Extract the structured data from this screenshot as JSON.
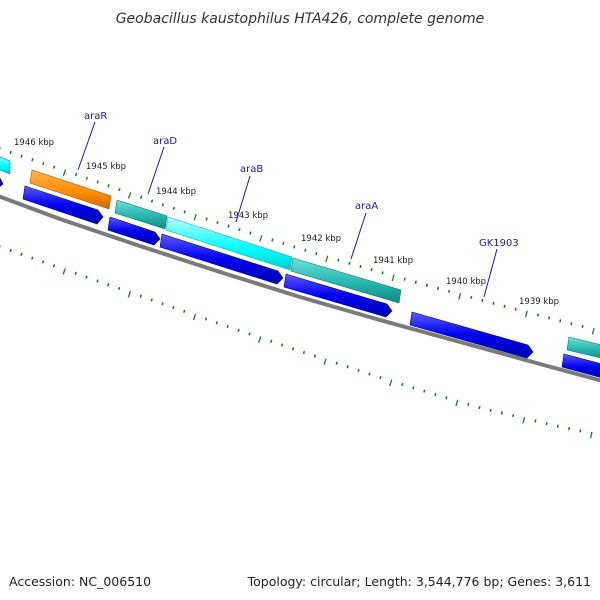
{
  "title": "Geobacillus kaustophilus HTA426, complete genome",
  "footer": {
    "accession": "Accession: NC_006510",
    "topology": "Topology: circular; Length: 3,544,776 bp; Genes: 3,611"
  },
  "kbp_labels": [
    "1946 kbp",
    "1945 kbp",
    "1944 kbp",
    "1943 kbp",
    "1942 kbp",
    "1941 kbp",
    "1940 kbp",
    "1939 kbp"
  ],
  "gene_labels": [
    "araR",
    "araD",
    "araB",
    "araA",
    "GK1903"
  ],
  "colors": {
    "orange": "#ff8c00",
    "teal": "#20b2aa",
    "cyan": "#00ffff",
    "blue": "#0000ee",
    "backbone": "#777777",
    "tick": "#1e7e1e",
    "label": "#1a1aa6"
  }
}
